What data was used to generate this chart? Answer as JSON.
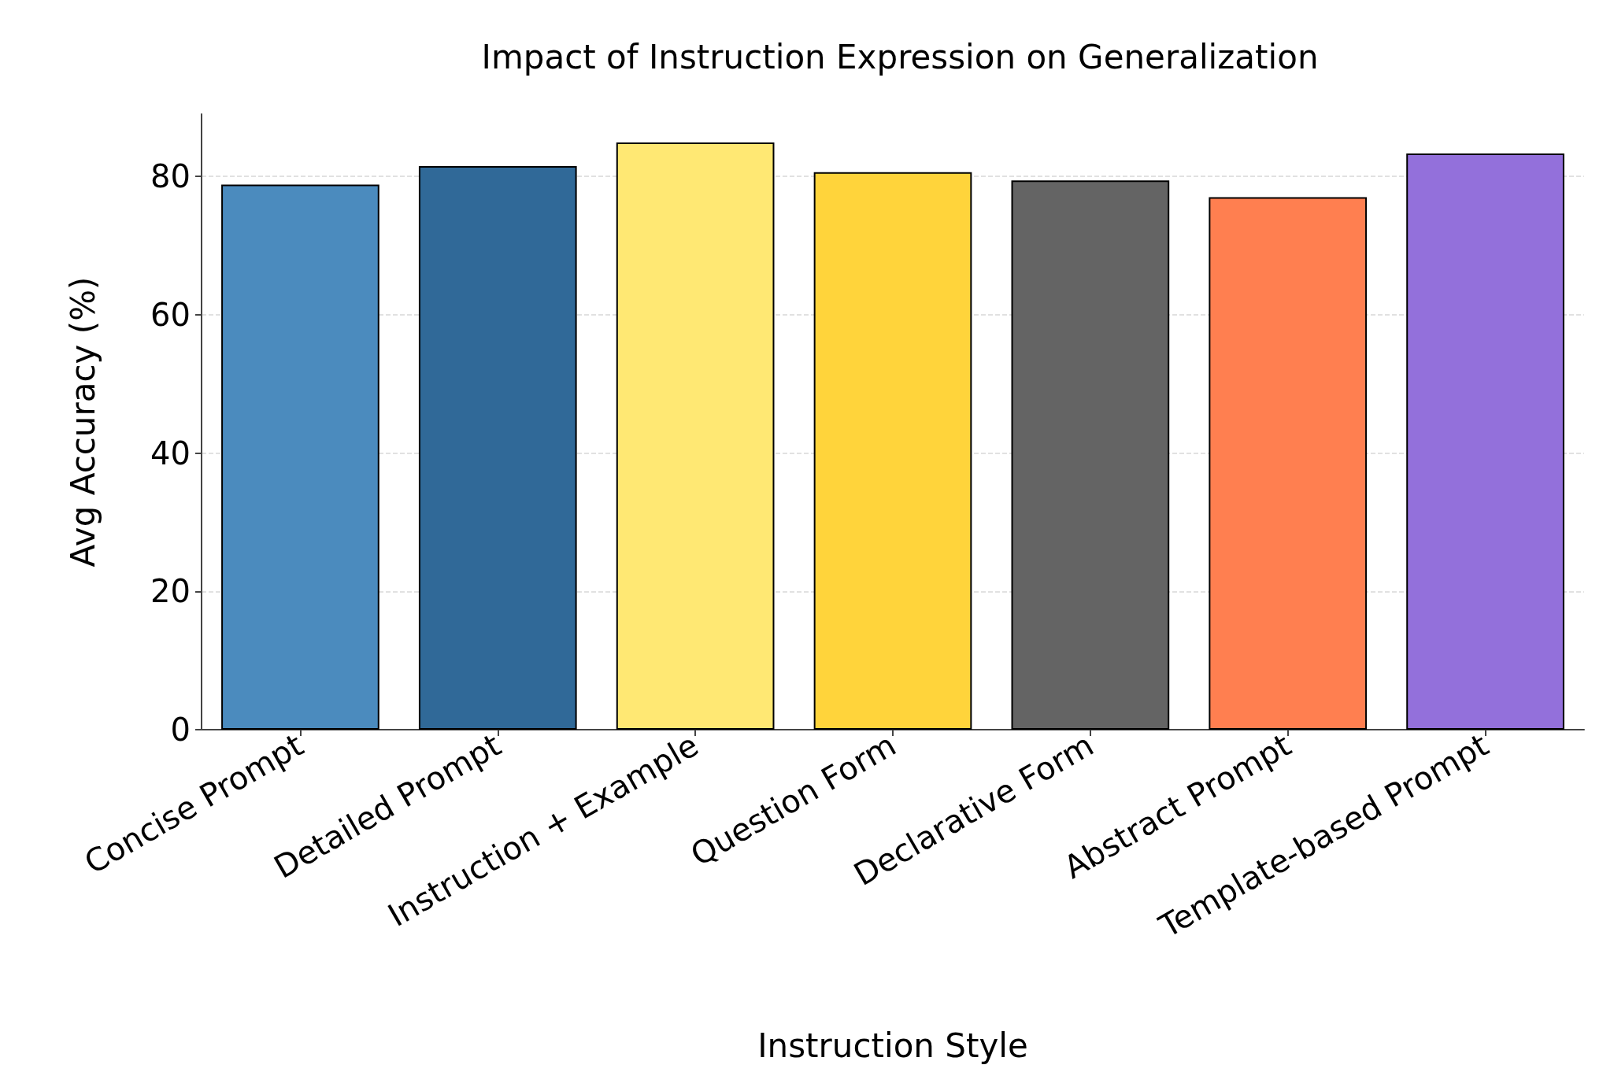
{
  "chart_data": {
    "type": "bar",
    "title": "Impact of Instruction Expression on Generalization",
    "xlabel": "Instruction Style",
    "ylabel": "Avg Accuracy (%)",
    "categories": [
      "Concise Prompt",
      "Detailed Prompt",
      "Instruction + Example",
      "Question Form",
      "Declarative Form",
      "Abstract Prompt",
      "Template-based Prompt"
    ],
    "values": [
      78.8,
      81.5,
      84.9,
      80.6,
      79.4,
      77.0,
      83.3
    ],
    "colors": [
      "#4b8bbe",
      "#306998",
      "#ffe873",
      "#ffd43b",
      "#646464",
      "#ff7f50",
      "#9370db"
    ],
    "ylim": [
      0,
      89
    ],
    "yticks": [
      0,
      20,
      40,
      60,
      80
    ],
    "grid": "y"
  }
}
